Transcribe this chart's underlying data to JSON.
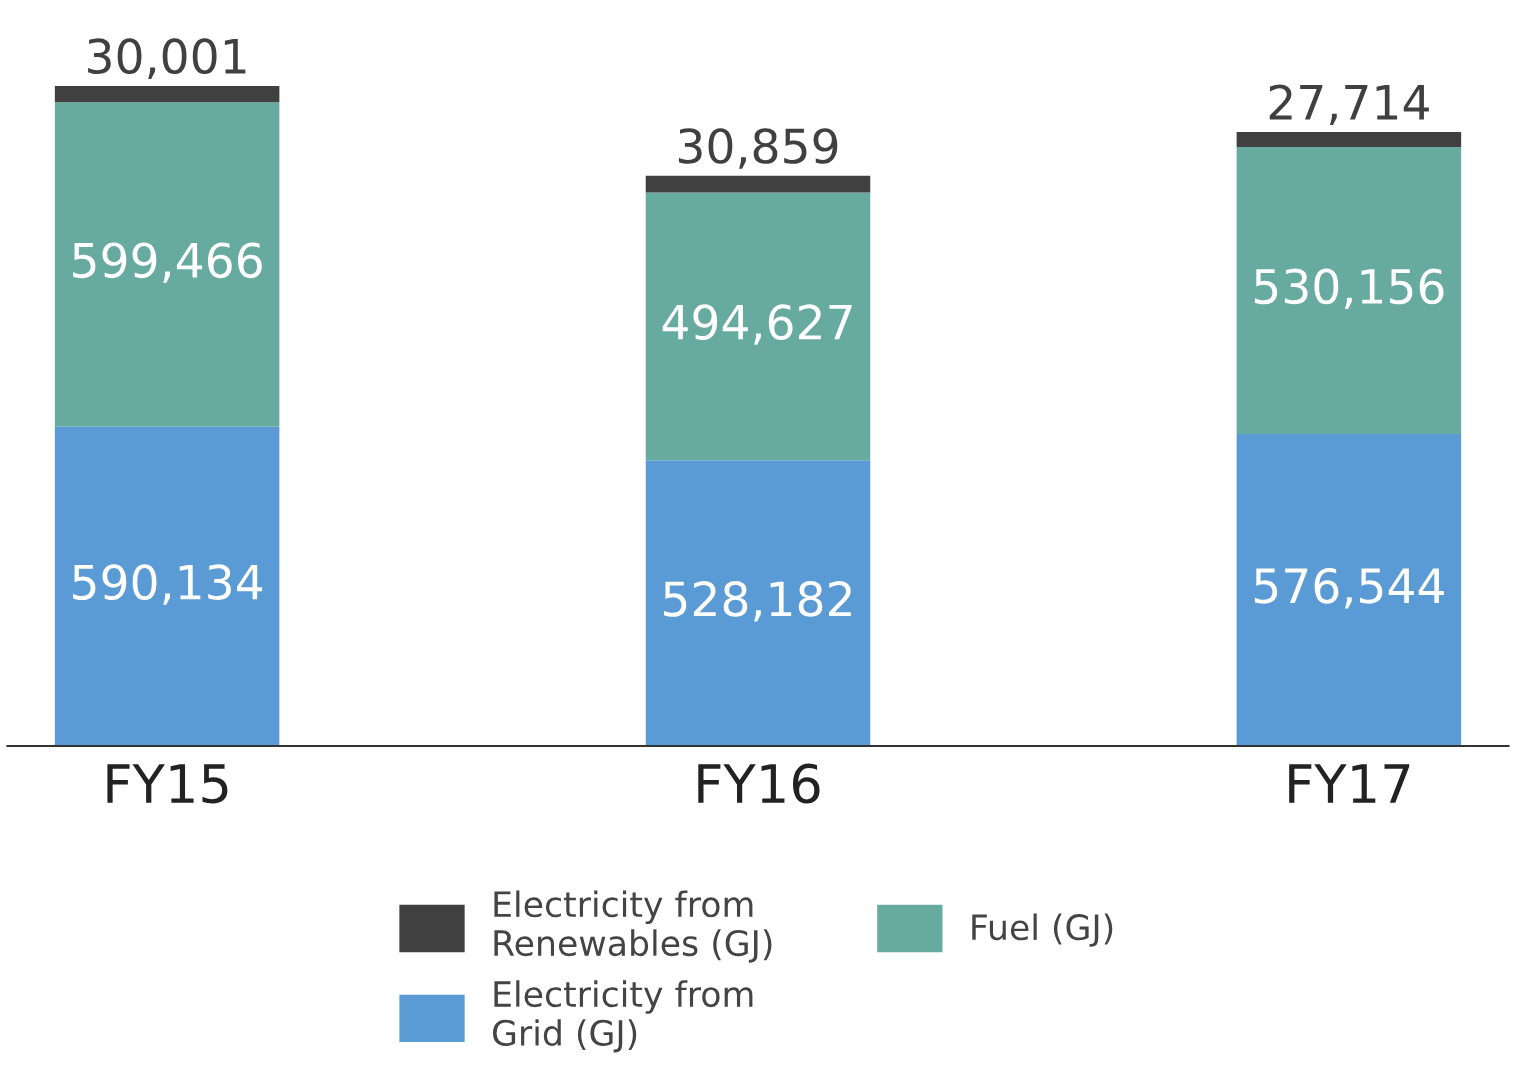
{
  "chart_data": {
    "type": "bar",
    "stacked": true,
    "categories": [
      "FY15",
      "FY16",
      "FY17"
    ],
    "series": [
      {
        "name": "Electricity from\nGrid (GJ)",
        "color": "#5b9bd5",
        "values": [
          590134,
          528182,
          576544
        ],
        "value_labels": [
          "590,134",
          "528,182",
          "576,544"
        ]
      },
      {
        "name": "Fuel (GJ)",
        "color": "#67aba0",
        "values": [
          599466,
          494627,
          530156
        ],
        "value_labels": [
          "599,466",
          "494,627",
          "530,156"
        ]
      },
      {
        "name": "Electricity from\nRenewables (GJ)",
        "color": "#404040",
        "values": [
          30001,
          30859,
          27714
        ],
        "value_labels": [
          "30,001",
          "30,859",
          "27,714"
        ]
      }
    ],
    "legend": "bottom",
    "tick_labels": "x"
  }
}
